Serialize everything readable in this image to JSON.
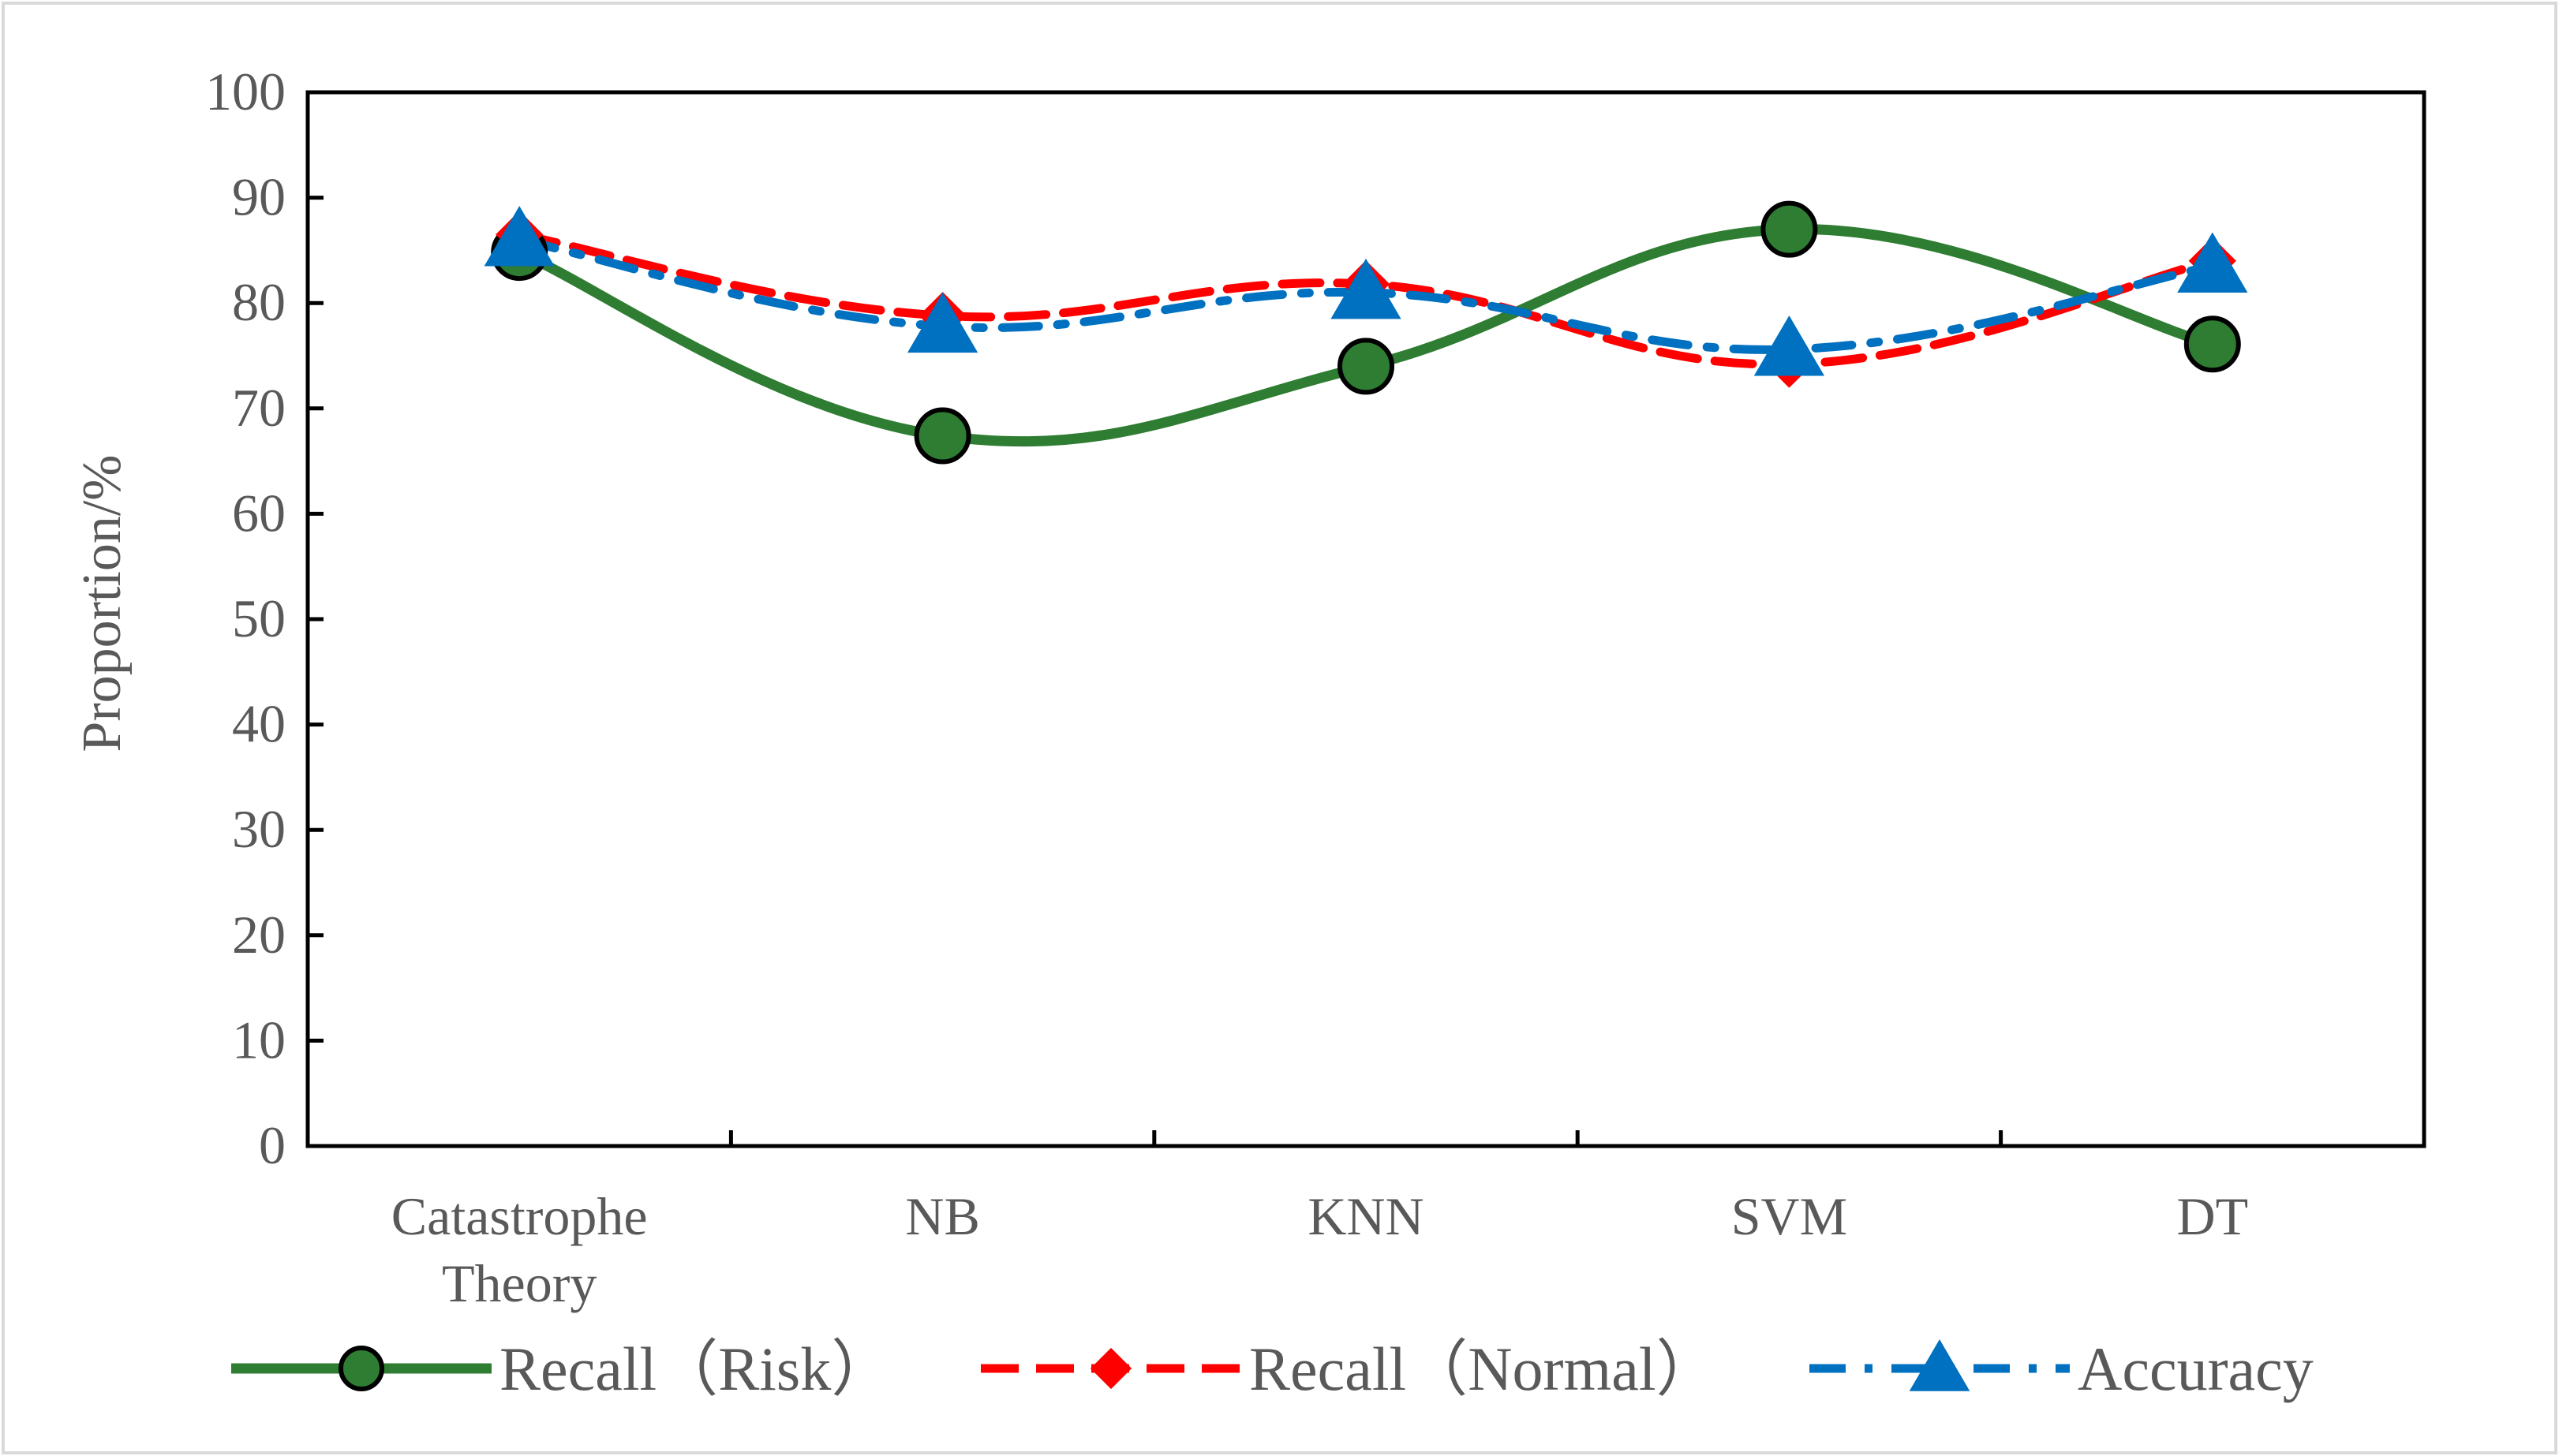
{
  "chart_data": {
    "type": "line",
    "title": "",
    "xlabel": "",
    "ylabel": "Proportion/%",
    "ylim": [
      0,
      100
    ],
    "yticks": [
      "0",
      "10",
      "20",
      "30",
      "40",
      "50",
      "60",
      "70",
      "80",
      "90",
      "100"
    ],
    "categories": [
      [
        "Catastrophe",
        "Theory"
      ],
      [
        "NB"
      ],
      [
        "KNN"
      ],
      [
        "SVM"
      ],
      [
        "DT"
      ]
    ],
    "grid": false,
    "legend_position": "bottom",
    "series": [
      {
        "name": "Recall（Risk）",
        "color": "#2E7D32",
        "marker": "circle",
        "line_style": "solid-smooth",
        "values": [
          84.8,
          67.4,
          74.0,
          87.0,
          76.1
        ]
      },
      {
        "name": "Recall（Normal）",
        "color": "#FF0000",
        "marker": "diamond",
        "line_style": "dashed",
        "values": [
          86.5,
          78.8,
          81.8,
          74.2,
          84.0
        ]
      },
      {
        "name": "Accuracy",
        "color": "#0070C0",
        "marker": "triangle",
        "line_style": "dash-dot",
        "values": [
          86.0,
          77.8,
          81.0,
          75.6,
          83.5
        ]
      }
    ]
  }
}
